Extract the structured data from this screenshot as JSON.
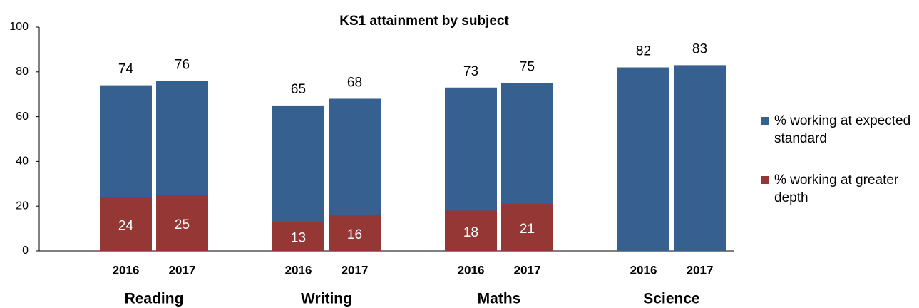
{
  "chart_data": {
    "type": "overlapped_bar",
    "title": "KS1 attainment by subject",
    "groups": [
      "Reading",
      "Writing",
      "Maths",
      "Science"
    ],
    "categories": [
      "2016",
      "2017",
      "2016",
      "2017",
      "2016",
      "2017",
      "2016",
      "2017"
    ],
    "series": [
      {
        "name": "% working at expected standard",
        "color": "#35608f",
        "values": [
          74,
          76,
          65,
          68,
          73,
          75,
          82,
          83
        ]
      },
      {
        "name": "% working at greater depth",
        "color": "#953735",
        "values": [
          24,
          25,
          13,
          16,
          18,
          21,
          null,
          null
        ]
      }
    ],
    "ylim": [
      0,
      100
    ],
    "yticks": [
      0,
      20,
      40,
      60,
      80,
      100
    ],
    "grid": false,
    "legend": "right"
  }
}
